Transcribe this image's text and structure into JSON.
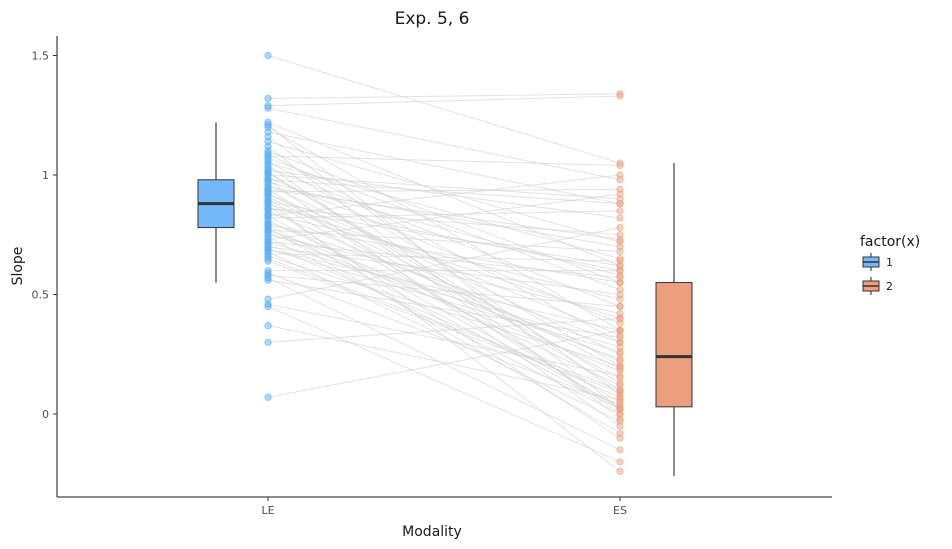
{
  "chart_data": {
    "type": "scatter",
    "subtype": "paired box plot with connected points",
    "title": "Exp. 5, 6",
    "xlabel": "Modality",
    "ylabel": "Slope",
    "categories": [
      "LE",
      "ES"
    ],
    "ylim": [
      -0.35,
      1.58
    ],
    "yticks": [
      0,
      0.5,
      1,
      1.5
    ],
    "ytick_labels": [
      "0",
      "0.5",
      "1",
      "1.5"
    ],
    "grid": false,
    "legend": {
      "title": "factor(x)",
      "position": "right",
      "entries": [
        {
          "label": "1",
          "color": "#2e8fe6"
        },
        {
          "label": "2",
          "color": "#e2875c"
        }
      ]
    },
    "colors": {
      "le_point": "#56aaf2",
      "es_point": "#e8a07e",
      "le_box_fill": "#75b9fb",
      "es_box_fill": "#eb9f7e",
      "connector": "#d0d0d0",
      "median": "#333333"
    },
    "boxplots": [
      {
        "group": "LE",
        "whisker_low": 0.55,
        "q1": 0.78,
        "median": 0.88,
        "q3": 0.98,
        "whisker_high": 1.22
      },
      {
        "group": "ES",
        "whisker_low": -0.26,
        "q1": 0.03,
        "median": 0.24,
        "q3": 0.55,
        "whisker_high": 1.05
      }
    ],
    "pairs": [
      [
        1.5,
        1.05
      ],
      [
        1.32,
        1.34
      ],
      [
        1.29,
        1.33
      ],
      [
        1.28,
        0.98
      ],
      [
        1.22,
        0.62
      ],
      [
        1.2,
        0.35
      ],
      [
        1.18,
        0.88
      ],
      [
        1.16,
        0.08
      ],
      [
        1.14,
        0.72
      ],
      [
        1.12,
        -0.02
      ],
      [
        1.1,
        0.55
      ],
      [
        1.09,
        0.3
      ],
      [
        1.08,
        1.04
      ],
      [
        1.06,
        0.2
      ],
      [
        1.05,
        0.65
      ],
      [
        1.04,
        0.0
      ],
      [
        1.03,
        0.45
      ],
      [
        1.02,
        0.82
      ],
      [
        1.01,
        0.1
      ],
      [
        1.0,
        0.9
      ],
      [
        0.99,
        0.38
      ],
      [
        0.98,
        -0.05
      ],
      [
        0.97,
        0.58
      ],
      [
        0.96,
        0.25
      ],
      [
        0.95,
        0.7
      ],
      [
        0.94,
        0.02
      ],
      [
        0.93,
        0.94
      ],
      [
        0.92,
        0.33
      ],
      [
        0.91,
        0.15
      ],
      [
        0.9,
        0.05
      ],
      [
        0.89,
        0.6
      ],
      [
        0.88,
        0.4
      ],
      [
        0.87,
        -0.1
      ],
      [
        0.86,
        0.75
      ],
      [
        0.85,
        0.22
      ],
      [
        0.84,
        0.48
      ],
      [
        0.83,
        0.03
      ],
      [
        0.82,
        0.85
      ],
      [
        0.81,
        0.12
      ],
      [
        0.8,
        0.3
      ],
      [
        0.79,
        0.55
      ],
      [
        0.78,
        -0.08
      ],
      [
        0.77,
        0.68
      ],
      [
        0.76,
        0.18
      ],
      [
        0.75,
        0.42
      ],
      [
        0.74,
        0.0
      ],
      [
        0.73,
        0.92
      ],
      [
        0.72,
        0.28
      ],
      [
        0.71,
        0.07
      ],
      [
        0.7,
        0.5
      ],
      [
        0.69,
        0.35
      ],
      [
        0.68,
        -0.03
      ],
      [
        0.67,
        0.64
      ],
      [
        0.66,
        0.2
      ],
      [
        0.65,
        0.1
      ],
      [
        0.6,
        0.6
      ],
      [
        0.59,
        0.04
      ],
      [
        0.58,
        0.45
      ],
      [
        0.57,
        -0.15
      ],
      [
        0.56,
        0.32
      ],
      [
        0.48,
        0.78
      ],
      [
        0.46,
        0.16
      ],
      [
        0.45,
        -0.2
      ],
      [
        0.37,
        0.06
      ],
      [
        0.3,
        0.4
      ],
      [
        0.07,
        0.35
      ],
      [
        1.21,
        0.02
      ],
      [
        1.07,
        0.52
      ],
      [
        0.94,
        0.73
      ],
      [
        0.83,
        1.0
      ],
      [
        0.77,
        0.23
      ],
      [
        0.64,
        0.09
      ],
      [
        0.89,
        -0.24
      ],
      [
        1.01,
        0.13
      ],
      [
        0.72,
        0.57
      ],
      [
        0.98,
        0.88
      ],
      [
        0.86,
        0.62
      ],
      [
        0.79,
        0.02
      ],
      [
        0.69,
        0.26
      ],
      [
        0.92,
        0.19
      ]
    ]
  }
}
